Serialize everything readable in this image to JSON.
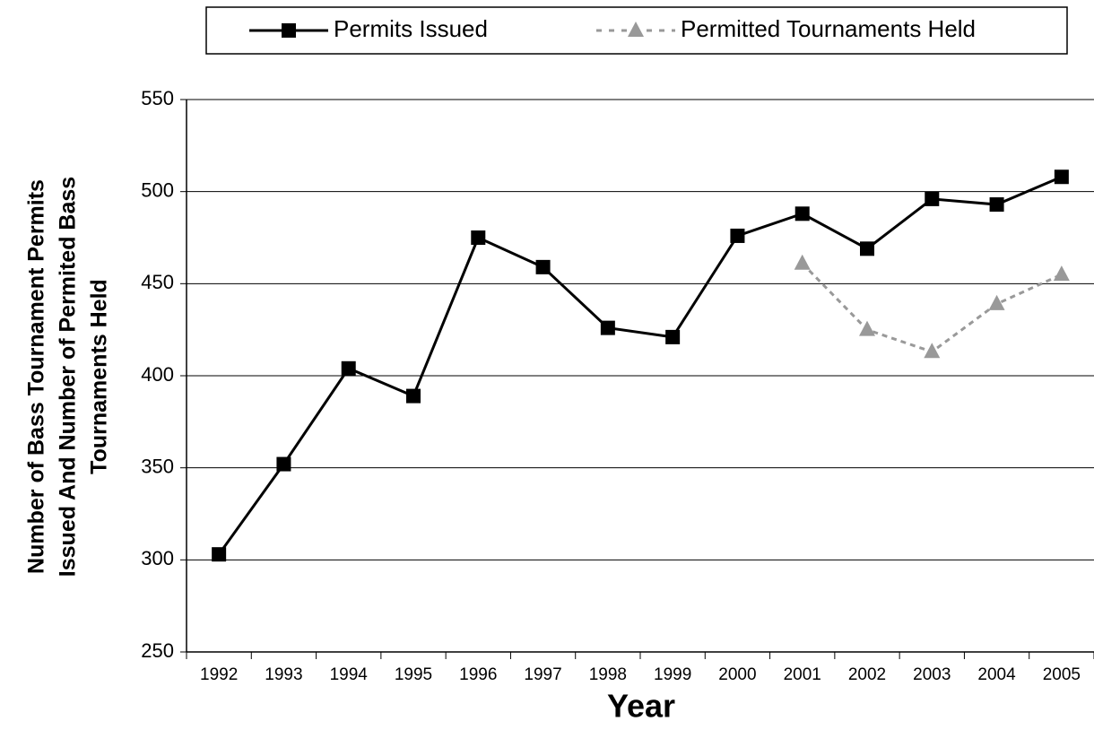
{
  "chart_data": {
    "type": "line",
    "xlabel": "Year",
    "ylabel": [
      "Number of Bass Tournament Permits",
      "Issued And Number of Permited Bass",
      "Tournaments Held"
    ],
    "categories": [
      "1992",
      "1993",
      "1994",
      "1995",
      "1996",
      "1997",
      "1998",
      "1999",
      "2000",
      "2001",
      "2002",
      "2003",
      "2004",
      "2005"
    ],
    "series": [
      {
        "name": "Permits Issued",
        "color": "#000000",
        "marker": "square",
        "dashed": false,
        "values": [
          303,
          352,
          404,
          389,
          475,
          459,
          426,
          421,
          476,
          488,
          469,
          496,
          493,
          508
        ]
      },
      {
        "name": "Permitted Tournaments Held",
        "color": "#999999",
        "marker": "triangle",
        "dashed": true,
        "values": [
          null,
          null,
          null,
          null,
          null,
          null,
          null,
          null,
          null,
          461,
          425,
          413,
          439,
          455
        ]
      }
    ],
    "ylim": [
      250,
      550
    ],
    "yticks": [
      250,
      300,
      350,
      400,
      450,
      500,
      550
    ],
    "grid": true,
    "legend": "top"
  }
}
